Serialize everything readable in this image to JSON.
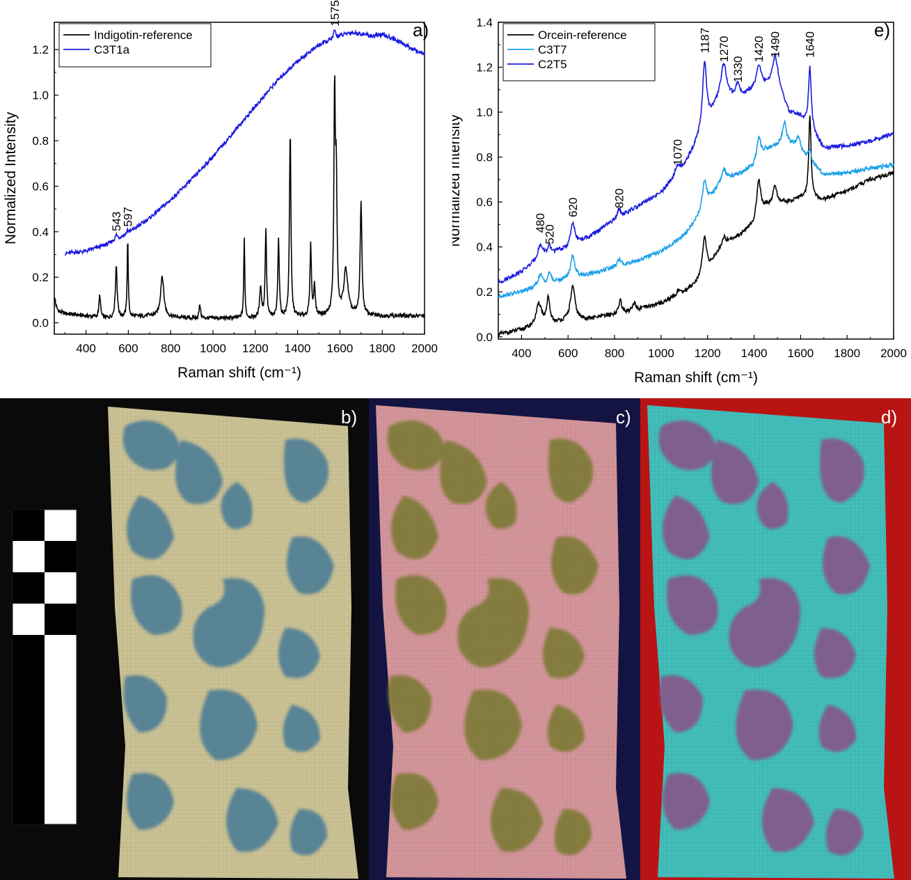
{
  "figure": {
    "panel_labels": [
      "a)",
      "b)",
      "c)",
      "d)",
      "e)"
    ]
  },
  "colors": {
    "black": "#000000",
    "blue": "#1a1adf",
    "lightblue": "#1aa0e8"
  },
  "chart_data": [
    {
      "id": "a",
      "type": "line",
      "panel_label": "a)",
      "xlabel": "Raman shift (cm⁻¹)",
      "ylabel": "Normalized Intensity",
      "xlim": [
        250,
        2000
      ],
      "ylim": [
        -0.05,
        1.32
      ],
      "xticks": [
        400,
        600,
        800,
        1000,
        1200,
        1400,
        1600,
        1800,
        2000
      ],
      "yticks": [
        0.0,
        0.2,
        0.4,
        0.6,
        0.8,
        1.0,
        1.2
      ],
      "legend": "top-left",
      "annotations": [
        {
          "text": "543",
          "x": 543,
          "y": 0.39
        },
        {
          "text": "597",
          "x": 597,
          "y": 0.41
        },
        {
          "text": "1575",
          "x": 1575,
          "y": 1.29
        }
      ],
      "series": [
        {
          "name": "Indigotin-reference",
          "color": "#000000",
          "baseline": [
            [
              250,
              0.05
            ],
            [
              300,
              0.04
            ],
            [
              400,
              0.03
            ],
            [
              500,
              0.02
            ],
            [
              700,
              0.03
            ],
            [
              900,
              0.02
            ],
            [
              1100,
              0.02
            ],
            [
              1300,
              0.02
            ],
            [
              1500,
              0.03
            ],
            [
              1700,
              0.03
            ],
            [
              2000,
              0.03
            ]
          ],
          "peaks": [
            [
              250,
              0.06,
              8
            ],
            [
              465,
              0.1,
              4
            ],
            [
              543,
              0.23,
              5
            ],
            [
              597,
              0.35,
              3
            ],
            [
              760,
              0.18,
              9
            ],
            [
              938,
              0.06,
              4
            ],
            [
              1148,
              0.35,
              3
            ],
            [
              1225,
              0.14,
              5
            ],
            [
              1250,
              0.39,
              4
            ],
            [
              1310,
              0.35,
              4
            ],
            [
              1365,
              0.82,
              4
            ],
            [
              1462,
              0.31,
              4
            ],
            [
              1480,
              0.14,
              4
            ],
            [
              1575,
              0.97,
              4
            ],
            [
              1583,
              0.55,
              4
            ],
            [
              1628,
              0.2,
              12
            ],
            [
              1700,
              0.5,
              5
            ]
          ]
        },
        {
          "name": "C3T1a",
          "color": "#1a1adf",
          "baseline": [
            [
              300,
              0.305
            ],
            [
              400,
              0.315
            ],
            [
              500,
              0.345
            ],
            [
              600,
              0.395
            ],
            [
              700,
              0.46
            ],
            [
              800,
              0.54
            ],
            [
              900,
              0.63
            ],
            [
              1000,
              0.73
            ],
            [
              1100,
              0.84
            ],
            [
              1200,
              0.95
            ],
            [
              1300,
              1.06
            ],
            [
              1400,
              1.15
            ],
            [
              1500,
              1.22
            ],
            [
              1600,
              1.26
            ],
            [
              1650,
              1.275
            ],
            [
              1700,
              1.27
            ],
            [
              1750,
              1.26
            ],
            [
              1800,
              1.265
            ],
            [
              1850,
              1.25
            ],
            [
              1900,
              1.225
            ],
            [
              1950,
              1.2
            ],
            [
              2000,
              1.18
            ]
          ],
          "peaks": [
            [
              543,
              0.02,
              6
            ],
            [
              597,
              0.015,
              5
            ],
            [
              1575,
              0.035,
              6
            ]
          ]
        }
      ]
    },
    {
      "id": "e",
      "type": "line",
      "panel_label": "e)",
      "xlabel": "Raman shift (cm⁻¹)",
      "ylabel": "Normalized Intensity",
      "xlim": [
        300,
        2000
      ],
      "ylim": [
        -0.01,
        1.4
      ],
      "xticks": [
        400,
        600,
        800,
        1000,
        1200,
        1400,
        1600,
        1800,
        2000
      ],
      "yticks": [
        0.0,
        0.2,
        0.4,
        0.6,
        0.8,
        1.0,
        1.2,
        1.4
      ],
      "legend": "top-left",
      "annotations": [
        {
          "text": "480",
          "x": 480,
          "y": 0.45
        },
        {
          "text": "520",
          "x": 520,
          "y": 0.4
        },
        {
          "text": "620",
          "x": 620,
          "y": 0.52
        },
        {
          "text": "820",
          "x": 820,
          "y": 0.56
        },
        {
          "text": "1070",
          "x": 1070,
          "y": 0.75
        },
        {
          "text": "1187",
          "x": 1187,
          "y": 1.25
        },
        {
          "text": "1270",
          "x": 1270,
          "y": 1.21
        },
        {
          "text": "1330",
          "x": 1330,
          "y": 1.12
        },
        {
          "text": "1420",
          "x": 1420,
          "y": 1.21
        },
        {
          "text": "1490",
          "x": 1490,
          "y": 1.23
        },
        {
          "text": "1640",
          "x": 1640,
          "y": 1.23
        }
      ],
      "series": [
        {
          "name": "Orcein-reference",
          "color": "#000000",
          "baseline": [
            [
              300,
              0.01
            ],
            [
              400,
              0.03
            ],
            [
              500,
              0.05
            ],
            [
              600,
              0.07
            ],
            [
              700,
              0.08
            ],
            [
              800,
              0.1
            ],
            [
              900,
              0.12
            ],
            [
              1000,
              0.15
            ],
            [
              1100,
              0.2
            ],
            [
              1150,
              0.24
            ],
            [
              1200,
              0.3
            ],
            [
              1250,
              0.38
            ],
            [
              1300,
              0.43
            ],
            [
              1350,
              0.46
            ],
            [
              1400,
              0.5
            ],
            [
              1450,
              0.58
            ],
            [
              1500,
              0.6
            ],
            [
              1550,
              0.6
            ],
            [
              1600,
              0.62
            ],
            [
              1700,
              0.61
            ],
            [
              1800,
              0.65
            ],
            [
              1900,
              0.7
            ],
            [
              2000,
              0.73
            ]
          ],
          "peaks": [
            [
              475,
              0.1,
              15
            ],
            [
              515,
              0.11,
              8
            ],
            [
              620,
              0.15,
              12
            ],
            [
              825,
              0.06,
              7
            ],
            [
              885,
              0.03,
              8
            ],
            [
              1075,
              0.02,
              8
            ],
            [
              1187,
              0.16,
              10
            ],
            [
              1270,
              0.04,
              12
            ],
            [
              1420,
              0.17,
              10
            ],
            [
              1490,
              0.08,
              8
            ],
            [
              1640,
              0.37,
              6
            ]
          ]
        },
        {
          "name": "C3T7",
          "color": "#1aa0e8",
          "baseline": [
            [
              300,
              0.18
            ],
            [
              400,
              0.2
            ],
            [
              500,
              0.23
            ],
            [
              600,
              0.26
            ],
            [
              700,
              0.28
            ],
            [
              800,
              0.31
            ],
            [
              900,
              0.34
            ],
            [
              1000,
              0.38
            ],
            [
              1100,
              0.45
            ],
            [
              1150,
              0.52
            ],
            [
              1200,
              0.6
            ],
            [
              1250,
              0.67
            ],
            [
              1300,
              0.71
            ],
            [
              1350,
              0.73
            ],
            [
              1400,
              0.76
            ],
            [
              1450,
              0.83
            ],
            [
              1500,
              0.85
            ],
            [
              1550,
              0.86
            ],
            [
              1600,
              0.83
            ],
            [
              1700,
              0.72
            ],
            [
              1800,
              0.73
            ],
            [
              1900,
              0.75
            ],
            [
              2000,
              0.765
            ]
          ],
          "peaks": [
            [
              480,
              0.05,
              12
            ],
            [
              520,
              0.05,
              8
            ],
            [
              620,
              0.1,
              10
            ],
            [
              820,
              0.03,
              8
            ],
            [
              1187,
              0.12,
              10
            ],
            [
              1270,
              0.06,
              12
            ],
            [
              1420,
              0.1,
              10
            ],
            [
              1530,
              0.1,
              10
            ],
            [
              1590,
              0.05,
              10
            ],
            [
              1640,
              0.05,
              6
            ]
          ]
        },
        {
          "name": "C2T5",
          "color": "#1a1adf",
          "baseline": [
            [
              300,
              0.24
            ],
            [
              400,
              0.29
            ],
            [
              500,
              0.36
            ],
            [
              550,
              0.38
            ],
            [
              600,
              0.39
            ],
            [
              700,
              0.45
            ],
            [
              800,
              0.52
            ],
            [
              900,
              0.58
            ],
            [
              1000,
              0.64
            ],
            [
              1100,
              0.76
            ],
            [
              1150,
              0.86
            ],
            [
              1200,
              0.96
            ],
            [
              1250,
              1.05
            ],
            [
              1300,
              1.06
            ],
            [
              1350,
              1.07
            ],
            [
              1400,
              1.1
            ],
            [
              1450,
              1.12
            ],
            [
              1500,
              1.13
            ],
            [
              1550,
              1.0
            ],
            [
              1600,
              0.98
            ],
            [
              1700,
              0.84
            ],
            [
              1800,
              0.85
            ],
            [
              1900,
              0.87
            ],
            [
              2000,
              0.905
            ]
          ],
          "peaks": [
            [
              480,
              0.06,
              14
            ],
            [
              520,
              0.03,
              8
            ],
            [
              620,
              0.1,
              12
            ],
            [
              820,
              0.04,
              8
            ],
            [
              1070,
              0.04,
              12
            ],
            [
              1187,
              0.29,
              10
            ],
            [
              1270,
              0.16,
              14
            ],
            [
              1330,
              0.06,
              10
            ],
            [
              1420,
              0.1,
              12
            ],
            [
              1490,
              0.12,
              12
            ],
            [
              1640,
              0.28,
              7
            ]
          ]
        }
      ]
    }
  ]
}
